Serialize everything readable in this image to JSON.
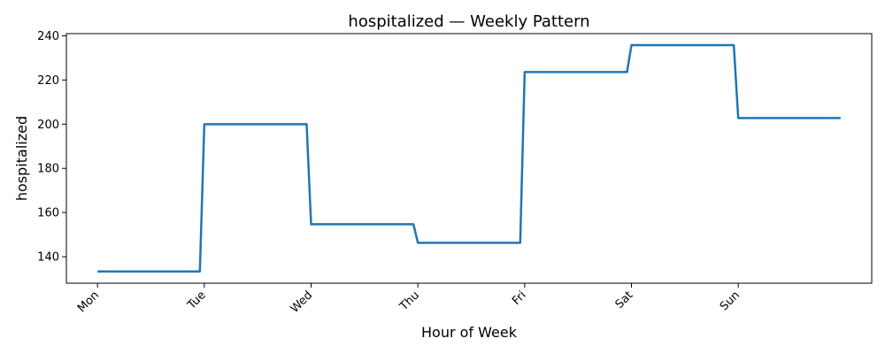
{
  "chart_data": {
    "type": "line",
    "title": "hospitalized — Weekly Pattern",
    "xlabel": "Hour of Week",
    "ylabel": "hospitalized",
    "xlim": [
      -7,
      174
    ],
    "ylim": [
      128,
      241
    ],
    "x_ticks": [
      {
        "value": 0,
        "label": "Mon"
      },
      {
        "value": 24,
        "label": "Tue"
      },
      {
        "value": 48,
        "label": "Wed"
      },
      {
        "value": 72,
        "label": "Thu"
      },
      {
        "value": 96,
        "label": "Fri"
      },
      {
        "value": 120,
        "label": "Sat"
      },
      {
        "value": 144,
        "label": "Sun"
      }
    ],
    "y_ticks": [
      140,
      160,
      180,
      200,
      220,
      240
    ],
    "grid": false,
    "series": [
      {
        "color": "#1f77b4",
        "x": [
          0,
          23,
          24,
          47,
          48,
          71,
          72,
          95,
          96,
          119,
          120,
          143,
          144,
          167
        ],
        "y": [
          133.3,
          133.3,
          200.0,
          200.0,
          154.7,
          154.7,
          146.3,
          146.3,
          223.6,
          223.6,
          235.8,
          235.8,
          202.8,
          202.8
        ]
      }
    ]
  }
}
